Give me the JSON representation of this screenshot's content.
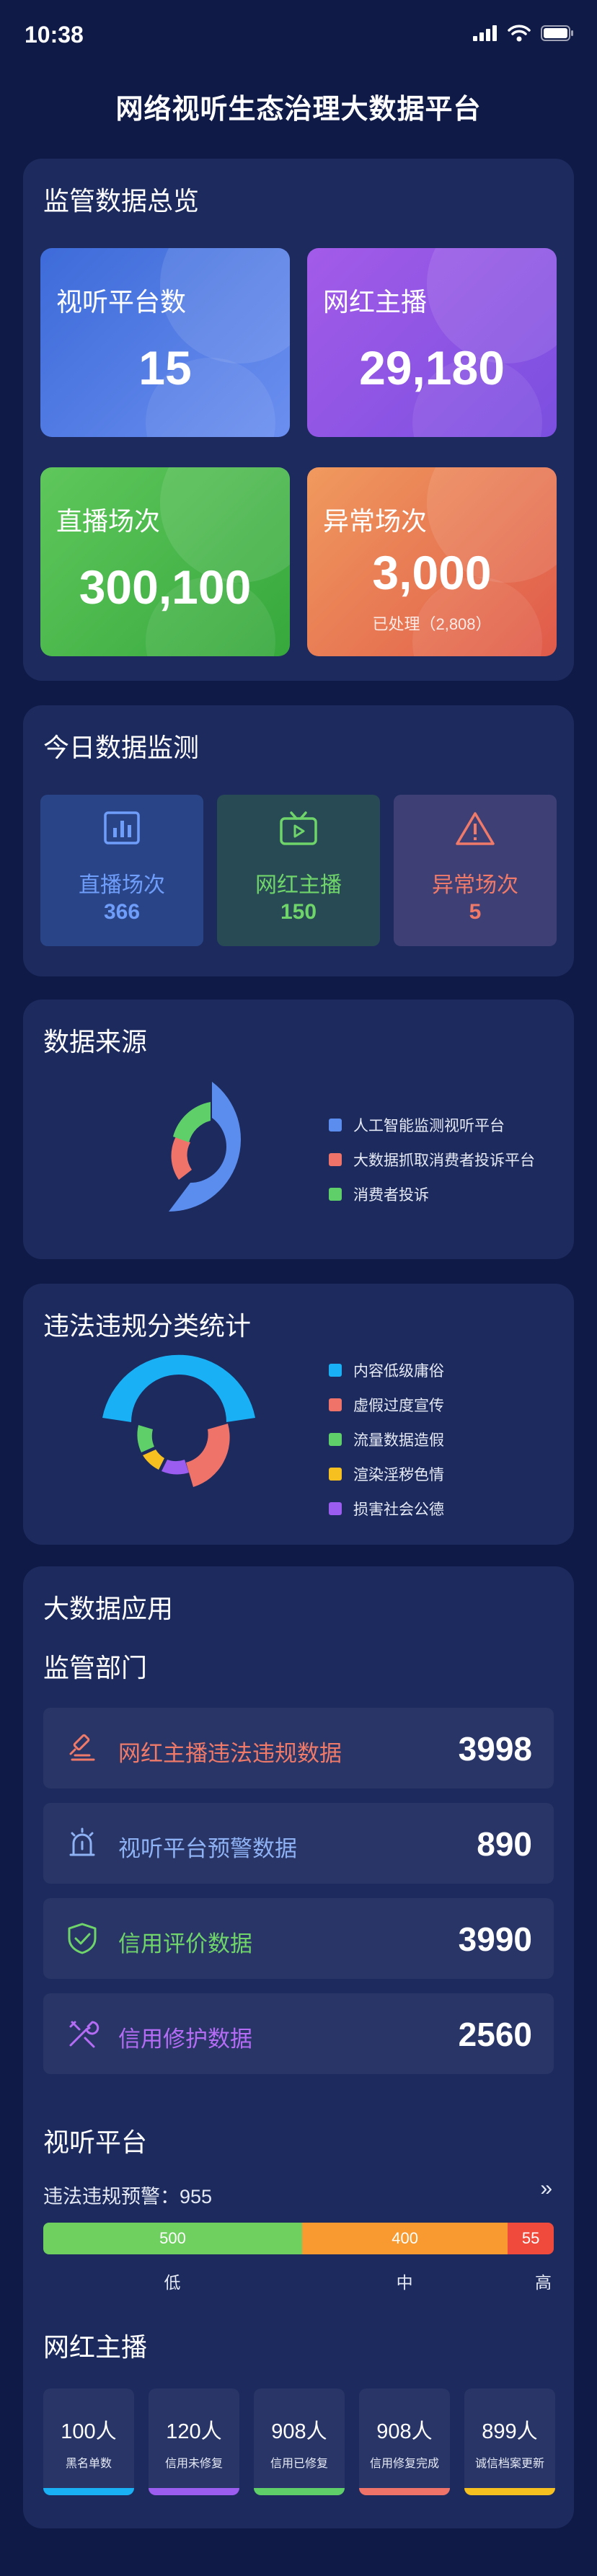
{
  "status": {
    "time": "10:38"
  },
  "page_title": "网络视听生态治理大数据平台",
  "overview": {
    "title": "监管数据总览",
    "tiles": [
      {
        "label": "视听平台数",
        "value": "15",
        "sub": "",
        "colors": [
          "#3d6bd9",
          "#6b8ff0"
        ]
      },
      {
        "label": "网红主播",
        "value": "29,180",
        "sub": "",
        "colors": [
          "#a35be8",
          "#7b4fe0"
        ]
      },
      {
        "label": "直播场次",
        "value": "300,100",
        "sub": "",
        "colors": [
          "#5fc75c",
          "#36a83c"
        ]
      },
      {
        "label": "异常场次",
        "value": "3,000",
        "sub": "已处理（2,808）",
        "colors": [
          "#f09a5e",
          "#e05a4a"
        ]
      }
    ]
  },
  "today": {
    "title": "今日数据监测",
    "items": [
      {
        "label": "直播场次",
        "value": "366",
        "color": "#6f9dfa",
        "bg": "#2a4587",
        "icon": "bar-chart-icon"
      },
      {
        "label": "网红主播",
        "value": "150",
        "color": "#6fd46a",
        "bg": "#274a55",
        "icon": "tv-play-icon"
      },
      {
        "label": "异常场次",
        "value": "5",
        "color": "#f07a6a",
        "bg": "#3d3f75",
        "icon": "warning-icon"
      }
    ]
  },
  "source": {
    "title": "数据来源",
    "legend": [
      {
        "label": "人工智能监测视听平台",
        "color": "#5b8def"
      },
      {
        "label": "大数据抓取消费者投诉平台",
        "color": "#f0736a"
      },
      {
        "label": "消费者投诉",
        "color": "#5fcf6a"
      }
    ]
  },
  "violation": {
    "title": "违法违规分类统计",
    "legend": [
      {
        "label": "内容低级庸俗",
        "color": "#1ab0f5"
      },
      {
        "label": "虚假过度宣传",
        "color": "#f0736a"
      },
      {
        "label": "流量数据造假",
        "color": "#5fcf6a"
      },
      {
        "label": "渲染淫秽色情",
        "color": "#f5c020"
      },
      {
        "label": "损害社会公德",
        "color": "#9b5cf0"
      }
    ]
  },
  "bigdata": {
    "title": "大数据应用",
    "dept_title": "监管部门",
    "depts": [
      {
        "label": "网红主播违法违规数据",
        "value": "3998",
        "color": "#f07a6a",
        "icon": "gavel-icon"
      },
      {
        "label": "视听平台预警数据",
        "value": "890",
        "color": "#8fb2f5",
        "icon": "alarm-icon"
      },
      {
        "label": "信用评价数据",
        "value": "3990",
        "color": "#6fd46a",
        "icon": "shield-check-icon"
      },
      {
        "label": "信用修护数据",
        "value": "2560",
        "color": "#b46cf5",
        "icon": "tools-icon"
      }
    ],
    "platform_title": "视听平台",
    "warning_label": "违法违规预警：955",
    "levels": [
      {
        "value": "500",
        "name": "低",
        "color": "#6fd060",
        "fraction": 0.507
      },
      {
        "value": "400",
        "name": "中",
        "color": "#f99a30",
        "fraction": 0.403
      },
      {
        "value": "55",
        "name": "高",
        "color": "#ef4a3c",
        "fraction": 0.09
      }
    ],
    "anchor_title": "网红主播",
    "anchor_stats": [
      {
        "value": "100人",
        "label": "黑名单数",
        "color": "#1ab0f5"
      },
      {
        "value": "120人",
        "label": "信用未修复",
        "color": "#9b5cf0"
      },
      {
        "value": "908人",
        "label": "信用已修复",
        "color": "#5fcf6a"
      },
      {
        "value": "908人",
        "label": "信用修复完成",
        "color": "#f0736a"
      },
      {
        "value": "899人",
        "label": "诚信档案更新",
        "color": "#f5c020"
      }
    ]
  }
}
